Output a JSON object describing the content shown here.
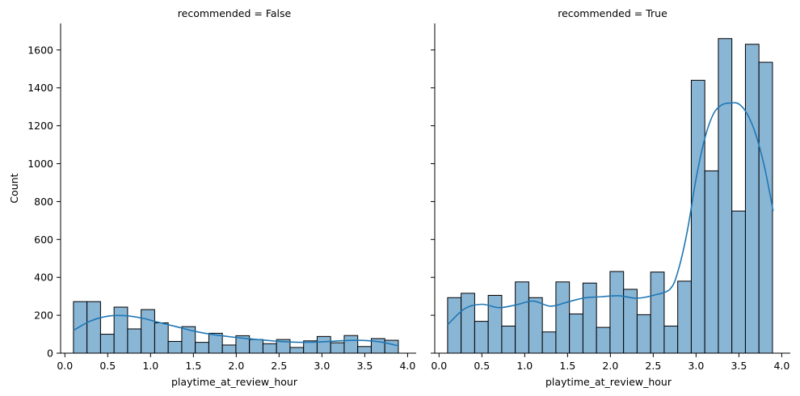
{
  "chart_data": [
    {
      "type": "bar",
      "title": "recommended = False",
      "xlabel": "playtime_at_review_hour",
      "ylabel": "Count",
      "xlim": [
        -0.05,
        4.1
      ],
      "ylim": [
        0,
        1740
      ],
      "xticks": [
        "0.0",
        "0.5",
        "1.0",
        "1.5",
        "2.0",
        "2.5",
        "3.0",
        "3.5",
        "4.0"
      ],
      "yticks": [
        "0",
        "200",
        "400",
        "600",
        "800",
        "1000",
        "1200",
        "1400",
        "1600"
      ],
      "bin_start": 0.1,
      "bin_width": 0.158,
      "values": [
        272,
        272,
        100,
        243,
        128,
        230,
        160,
        62,
        140,
        57,
        105,
        43,
        92,
        72,
        50,
        72,
        30,
        65,
        88,
        55,
        93,
        35,
        77,
        68
      ],
      "kde_x": [
        0.1,
        0.3,
        0.5,
        0.7,
        0.9,
        1.1,
        1.3,
        1.5,
        1.7,
        1.9,
        2.1,
        2.3,
        2.5,
        2.7,
        2.9,
        3.1,
        3.3,
        3.5,
        3.7,
        3.9
      ],
      "kde_y": [
        120,
        170,
        195,
        198,
        185,
        162,
        140,
        117,
        100,
        88,
        78,
        70,
        62,
        58,
        58,
        62,
        67,
        67,
        58,
        38
      ],
      "grid": false,
      "legend": "none"
    },
    {
      "type": "bar",
      "title": "recommended = True",
      "xlabel": "playtime_at_review_hour",
      "ylabel": "",
      "xlim": [
        -0.05,
        4.1
      ],
      "ylim": [
        0,
        1740
      ],
      "xticks": [
        "0.0",
        "0.5",
        "1.0",
        "1.5",
        "2.0",
        "2.5",
        "3.0",
        "3.5",
        "4.0"
      ],
      "yticks": [],
      "bin_start": 0.1,
      "bin_width": 0.158,
      "values": [
        293,
        316,
        168,
        305,
        143,
        376,
        293,
        112,
        376,
        207,
        370,
        136,
        431,
        337,
        203,
        428,
        143,
        380,
        1440,
        962,
        1660,
        750,
        1630,
        1535
      ],
      "kde_x": [
        0.1,
        0.3,
        0.5,
        0.7,
        0.9,
        1.1,
        1.3,
        1.5,
        1.7,
        1.9,
        2.1,
        2.3,
        2.5,
        2.7,
        2.8,
        2.9,
        3.0,
        3.1,
        3.2,
        3.3,
        3.4,
        3.5,
        3.6,
        3.7,
        3.8,
        3.9
      ],
      "kde_y": [
        150,
        235,
        258,
        240,
        255,
        275,
        248,
        270,
        292,
        298,
        303,
        290,
        305,
        340,
        450,
        650,
        920,
        1130,
        1260,
        1310,
        1320,
        1315,
        1260,
        1150,
        980,
        750
      ],
      "grid": false,
      "legend": "none"
    }
  ]
}
